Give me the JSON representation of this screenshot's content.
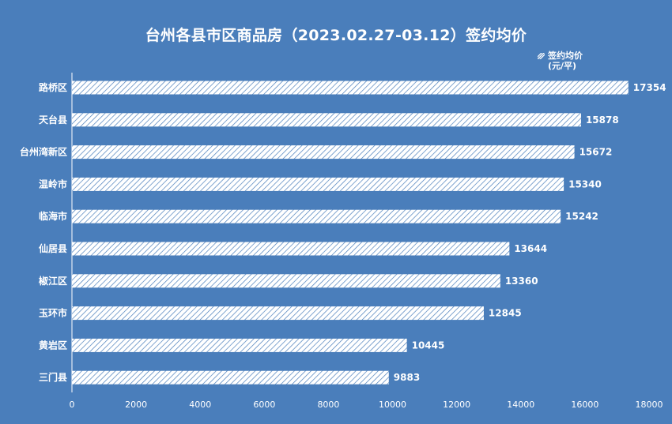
{
  "chart_data": {
    "type": "bar",
    "orientation": "horizontal",
    "title": "台州各县市区商品房（2023.02.27-03.12）签约均价",
    "categories": [
      "路桥区",
      "天台县",
      "台州湾新区",
      "温岭市",
      "临海市",
      "仙居县",
      "椒江区",
      "玉环市",
      "黄岩区",
      "三门县"
    ],
    "series": [
      {
        "name": "签约均价(元/平)",
        "values": [
          17354,
          15878,
          15672,
          15340,
          15242,
          13644,
          13360,
          12845,
          10445,
          9883
        ]
      }
    ],
    "legend": {
      "label": "签约均价",
      "unit": "(元/平)",
      "placement": "top-right"
    },
    "xlim": [
      0,
      18000
    ],
    "xticks": [
      0,
      2000,
      4000,
      6000,
      8000,
      10000,
      12000,
      14000,
      16000,
      18000
    ],
    "grid": false,
    "colors": {
      "background": "#4a7ebb",
      "bar": "#ffffff",
      "text": "#ffffff"
    },
    "bar_pattern": "diagonal-hatch"
  }
}
